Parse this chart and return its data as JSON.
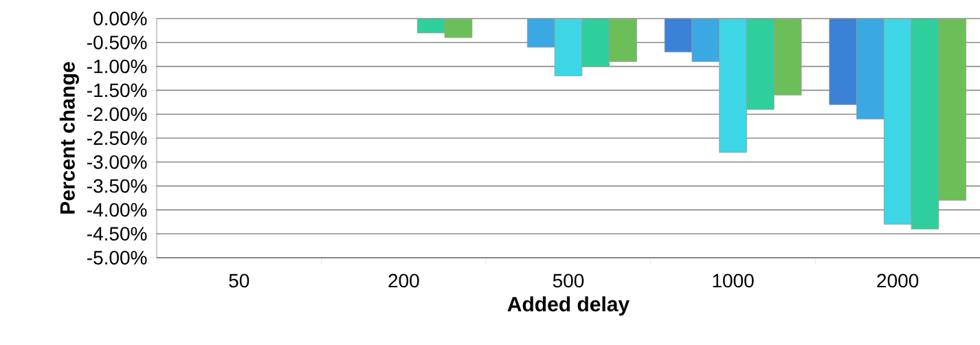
{
  "chart_data": {
    "type": "bar",
    "xlabel": "Added delay",
    "ylabel": "Percent change",
    "categories": [
      "50",
      "200",
      "500",
      "1000",
      "2000"
    ],
    "series": [
      {
        "color": "#3b82d6",
        "values": [
          null,
          null,
          null,
          -0.7,
          -1.8
        ]
      },
      {
        "color": "#3aa8e2",
        "values": [
          null,
          null,
          -0.6,
          -0.9,
          -2.1
        ]
      },
      {
        "color": "#3dd6e6",
        "values": [
          null,
          null,
          -1.2,
          -2.8,
          -4.3
        ]
      },
      {
        "color": "#2ecf9c",
        "values": [
          null,
          -0.3,
          -1.0,
          -1.9,
          -4.4
        ]
      },
      {
        "color": "#6cbf58",
        "values": [
          null,
          -0.4,
          -0.9,
          -1.6,
          -3.8
        ]
      }
    ],
    "ylim": [
      -5,
      0
    ],
    "yticks": [
      {
        "value": 0,
        "label": "0.00%"
      },
      {
        "value": -0.5,
        "label": "-0.50%"
      },
      {
        "value": -1,
        "label": "-1.00%"
      },
      {
        "value": -1.5,
        "label": "-1.50%"
      },
      {
        "value": -2,
        "label": "-2.00%"
      },
      {
        "value": -2.5,
        "label": "-2.50%"
      },
      {
        "value": -3,
        "label": "-3.00%"
      },
      {
        "value": -3.5,
        "label": "-3.50%"
      },
      {
        "value": -4,
        "label": "-4.00%"
      },
      {
        "value": -4.5,
        "label": "-4.50%"
      },
      {
        "value": -5,
        "label": "-5.00%"
      }
    ],
    "grid": "y"
  }
}
